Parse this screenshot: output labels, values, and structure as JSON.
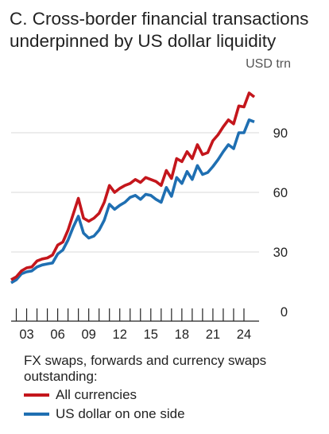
{
  "title": "C. Cross-border financial transactions underpinned by US dollar liquidity",
  "unit": "USD trn",
  "legend_heading": "FX swaps, forwards and currency swaps outstanding:",
  "colors": {
    "all_currencies": "#c4161c",
    "us_dollar": "#1f6fb2",
    "axis": "#222222",
    "grid": "#d9d9d9"
  },
  "chart_data": {
    "type": "line",
    "title": "C. Cross-border financial transactions underpinned by US dollar liquidity",
    "ylabel": "USD trn",
    "xlim": [
      2001.5,
      2025.0
    ],
    "ylim": [
      0,
      120
    ],
    "yticks": [
      0,
      30,
      60,
      90
    ],
    "xticks": [
      "03",
      "06",
      "09",
      "12",
      "15",
      "18",
      "21",
      "24"
    ],
    "xtick_values": [
      2003,
      2006,
      2009,
      2012,
      2015,
      2018,
      2021,
      2024
    ],
    "grid": true,
    "legend_position": "below",
    "series": [
      {
        "name": "All currencies",
        "color": "#c4161c",
        "points": [
          [
            2001.5,
            16.0
          ],
          [
            2002.0,
            17.5
          ],
          [
            2002.5,
            20.5
          ],
          [
            2003.0,
            22.0
          ],
          [
            2003.5,
            22.5
          ],
          [
            2004.0,
            25.5
          ],
          [
            2004.5,
            26.5
          ],
          [
            2005.0,
            27.0
          ],
          [
            2005.5,
            28.5
          ],
          [
            2006.0,
            33.5
          ],
          [
            2006.5,
            35.0
          ],
          [
            2007.0,
            41.0
          ],
          [
            2007.5,
            49.0
          ],
          [
            2008.0,
            57.0
          ],
          [
            2008.5,
            47.0
          ],
          [
            2009.0,
            45.5
          ],
          [
            2009.5,
            47.0
          ],
          [
            2010.0,
            49.5
          ],
          [
            2010.5,
            55.0
          ],
          [
            2011.0,
            63.5
          ],
          [
            2011.5,
            60.0
          ],
          [
            2012.0,
            62.0
          ],
          [
            2012.5,
            63.5
          ],
          [
            2013.0,
            64.5
          ],
          [
            2013.5,
            66.5
          ],
          [
            2014.0,
            65.0
          ],
          [
            2014.5,
            67.5
          ],
          [
            2015.0,
            66.5
          ],
          [
            2015.5,
            65.5
          ],
          [
            2016.0,
            63.5
          ],
          [
            2016.5,
            71.0
          ],
          [
            2017.0,
            67.0
          ],
          [
            2017.5,
            77.0
          ],
          [
            2018.0,
            75.5
          ],
          [
            2018.5,
            80.5
          ],
          [
            2019.0,
            77.0
          ],
          [
            2019.5,
            84.0
          ],
          [
            2020.0,
            79.0
          ],
          [
            2020.5,
            80.0
          ],
          [
            2021.0,
            86.0
          ],
          [
            2021.5,
            89.0
          ],
          [
            2022.0,
            93.0
          ],
          [
            2022.5,
            96.5
          ],
          [
            2023.0,
            94.5
          ],
          [
            2023.5,
            103.5
          ],
          [
            2024.0,
            103.0
          ],
          [
            2024.5,
            110.0
          ],
          [
            2025.0,
            108.0
          ]
        ]
      },
      {
        "name": "US dollar on one side",
        "color": "#1f6fb2",
        "points": [
          [
            2001.5,
            14.5
          ],
          [
            2002.0,
            16.0
          ],
          [
            2002.5,
            19.0
          ],
          [
            2003.0,
            20.0
          ],
          [
            2003.5,
            20.5
          ],
          [
            2004.0,
            22.5
          ],
          [
            2004.5,
            23.5
          ],
          [
            2005.0,
            24.0
          ],
          [
            2005.5,
            24.5
          ],
          [
            2006.0,
            29.0
          ],
          [
            2006.5,
            31.0
          ],
          [
            2007.0,
            36.0
          ],
          [
            2007.5,
            42.5
          ],
          [
            2008.0,
            48.0
          ],
          [
            2008.5,
            39.5
          ],
          [
            2009.0,
            37.0
          ],
          [
            2009.5,
            38.0
          ],
          [
            2010.0,
            41.0
          ],
          [
            2010.5,
            46.0
          ],
          [
            2011.0,
            54.0
          ],
          [
            2011.5,
            51.5
          ],
          [
            2012.0,
            53.5
          ],
          [
            2012.5,
            55.0
          ],
          [
            2013.0,
            57.5
          ],
          [
            2013.5,
            58.5
          ],
          [
            2014.0,
            56.5
          ],
          [
            2014.5,
            59.0
          ],
          [
            2015.0,
            58.5
          ],
          [
            2015.5,
            56.5
          ],
          [
            2016.0,
            55.0
          ],
          [
            2016.5,
            62.5
          ],
          [
            2017.0,
            58.0
          ],
          [
            2017.5,
            67.5
          ],
          [
            2018.0,
            64.5
          ],
          [
            2018.5,
            70.5
          ],
          [
            2019.0,
            66.5
          ],
          [
            2019.5,
            73.5
          ],
          [
            2020.0,
            69.0
          ],
          [
            2020.5,
            70.0
          ],
          [
            2021.0,
            73.0
          ],
          [
            2021.5,
            76.5
          ],
          [
            2022.0,
            80.5
          ],
          [
            2022.5,
            84.0
          ],
          [
            2023.0,
            82.0
          ],
          [
            2023.5,
            90.0
          ],
          [
            2024.0,
            90.0
          ],
          [
            2024.5,
            96.5
          ],
          [
            2025.0,
            95.5
          ]
        ]
      }
    ]
  }
}
